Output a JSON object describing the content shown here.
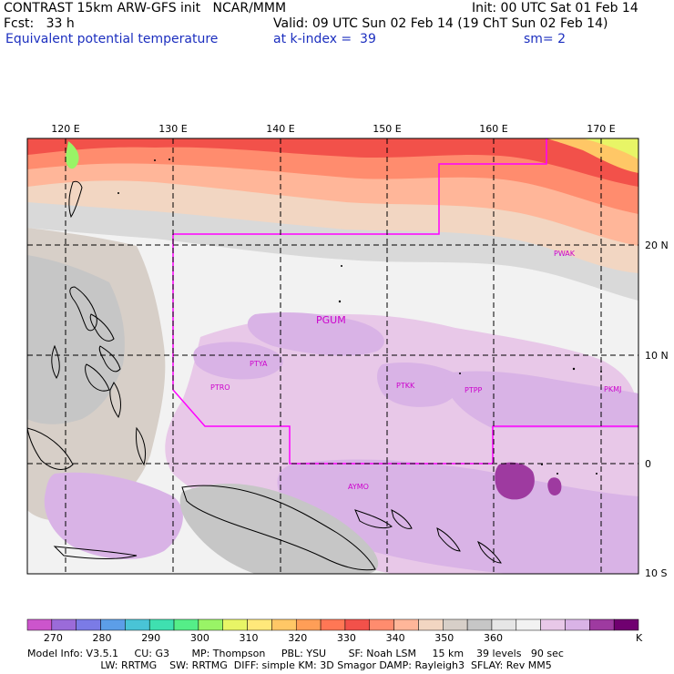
{
  "header": {
    "line1_left": "CONTRAST 15km ARW-GFS init   NCAR/MMM",
    "line1_right": "Init: 00 UTC Sat 01 Feb 14",
    "line2_left": "Fcst:   33 h",
    "line2_right": "Valid: 09 UTC Sun 02 Feb 14 (19 ChT Sun 02 Feb 14)",
    "line3_left": "Equivalent potential temperature",
    "line3_mid": "at k-index =  39",
    "line3_right": "sm= 2"
  },
  "map": {
    "lon_labels": [
      "120 E",
      "130 E",
      "140 E",
      "150 E",
      "160 E",
      "170 E"
    ],
    "lat_labels": [
      "20 N",
      "10 N",
      "0",
      "10 S"
    ],
    "stations": [
      "PWAK",
      "PGUM",
      "PTYA",
      "PTRO",
      "PTKK",
      "PTPP",
      "PKMJ",
      "AYMO"
    ]
  },
  "colorbar": {
    "colors": [
      "#cc55cc",
      "#9b6bd9",
      "#7b7be6",
      "#5c9ee8",
      "#49c4d6",
      "#3fe0b0",
      "#55ee88",
      "#99f466",
      "#e8f566",
      "#ffe87a",
      "#ffc766",
      "#ff9e57",
      "#ff7755",
      "#f2514a",
      "#ff8c6e",
      "#ffb699",
      "#f2d6c2",
      "#d7cfc8",
      "#c6c6c6",
      "#e6e6e6",
      "#f2f2f2",
      "#e8c8e8",
      "#d9b3e6",
      "#9e3aa0",
      "#700070"
    ],
    "ticks": [
      "270",
      "280",
      "290",
      "300",
      "310",
      "320",
      "330",
      "340",
      "350",
      "360"
    ],
    "unit": "K"
  },
  "footer": {
    "line1": "Model Info: V3.5.1     CU: G3       MP: Thompson     PBL: YSU       SF: Noah LSM     15 km    39 levels   90 sec",
    "line2": "                       LW: RRTMG    SW: RRTMG  DIFF: simple KM: 3D Smagor DAMP: Rayleigh3  SFLAY: Rev MM5"
  }
}
